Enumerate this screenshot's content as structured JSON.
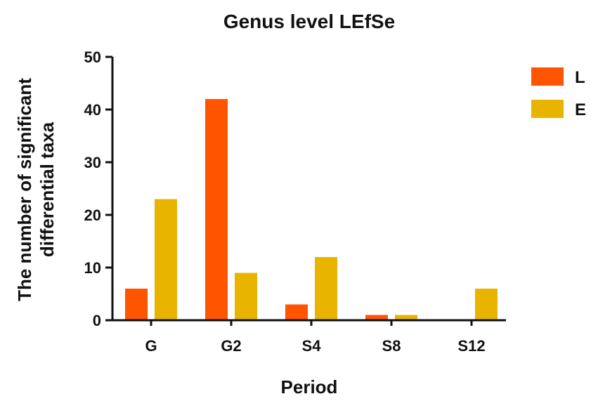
{
  "chart_data": {
    "type": "bar",
    "title": "Genus level LEfSe",
    "xlabel": "Period",
    "ylabel_lines": [
      "The number of significant",
      "differential taxa"
    ],
    "categories": [
      "G",
      "G2",
      "S4",
      "S8",
      "S12"
    ],
    "series": [
      {
        "name": "L",
        "color": "#ff5500",
        "values": [
          6,
          42,
          3,
          1,
          0
        ]
      },
      {
        "name": "E",
        "color": "#e8b400",
        "values": [
          23,
          9,
          12,
          1,
          6
        ]
      }
    ],
    "ylim": [
      0,
      50
    ],
    "yticks": [
      0,
      10,
      20,
      30,
      40,
      50
    ],
    "grid": false,
    "legend_position": "top-right"
  }
}
